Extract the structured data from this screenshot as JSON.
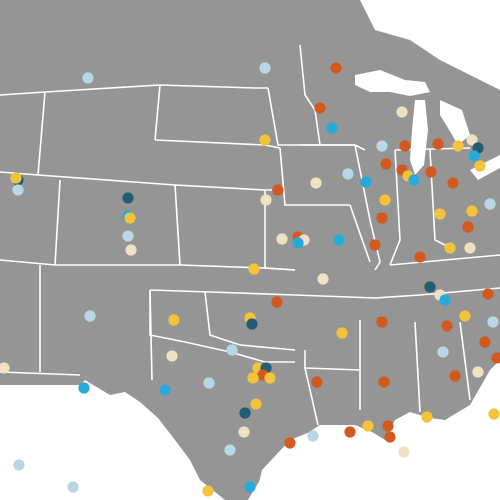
{
  "map": {
    "colors": {
      "background": "#ffffff",
      "land": "#959595",
      "border": "#ffffff"
    },
    "point_categories": [
      {
        "id": "orange",
        "color": "#d35a1e"
      },
      {
        "id": "gold",
        "color": "#f3c33c"
      },
      {
        "id": "light-blue",
        "color": "#b8d7e6"
      },
      {
        "id": "cream",
        "color": "#efe2c2"
      },
      {
        "id": "bright-blue",
        "color": "#27a9dc"
      },
      {
        "id": "dark-teal",
        "color": "#245c73"
      }
    ]
  }
}
